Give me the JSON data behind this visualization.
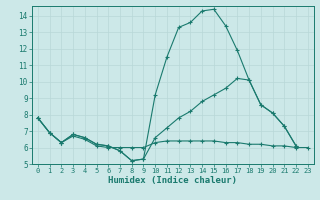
{
  "xlabel": "Humidex (Indice chaleur)",
  "bg_color": "#cce8e8",
  "grid_color": "#b8d8d8",
  "line_color": "#1a7a6e",
  "xlim": [
    -0.5,
    23.5
  ],
  "ylim": [
    5,
    14.6
  ],
  "yticks": [
    5,
    6,
    7,
    8,
    9,
    10,
    11,
    12,
    13,
    14
  ],
  "xticks": [
    0,
    1,
    2,
    3,
    4,
    5,
    6,
    7,
    8,
    9,
    10,
    11,
    12,
    13,
    14,
    15,
    16,
    17,
    18,
    19,
    20,
    21,
    22,
    23
  ],
  "line1_x": [
    0,
    1,
    2,
    3,
    4,
    5,
    6,
    7,
    8,
    9,
    10,
    11,
    12,
    13,
    14,
    15,
    16,
    17,
    18,
    19,
    20,
    21,
    22
  ],
  "line1_y": [
    7.8,
    6.9,
    6.3,
    6.8,
    6.6,
    6.2,
    6.1,
    5.8,
    5.2,
    5.3,
    9.2,
    11.5,
    13.3,
    13.6,
    14.3,
    14.4,
    13.4,
    11.9,
    10.1,
    8.6,
    8.1,
    7.3,
    6.1
  ],
  "line2_x": [
    0,
    1,
    2,
    3,
    4,
    5,
    6,
    7,
    8,
    9,
    10,
    11,
    12,
    13,
    14,
    15,
    16,
    17,
    18,
    19,
    20,
    21,
    22
  ],
  "line2_y": [
    7.8,
    6.9,
    6.3,
    6.8,
    6.6,
    6.2,
    6.1,
    5.8,
    5.2,
    5.3,
    6.6,
    7.2,
    7.8,
    8.2,
    8.8,
    9.2,
    9.6,
    10.2,
    10.1,
    8.6,
    8.1,
    7.3,
    6.1
  ],
  "line3_x": [
    0,
    1,
    2,
    3,
    4,
    5,
    6,
    7,
    8,
    9,
    10,
    11,
    12,
    13,
    14,
    15,
    16,
    17,
    18,
    19,
    20,
    21,
    22,
    23
  ],
  "line3_y": [
    7.8,
    6.9,
    6.3,
    6.7,
    6.5,
    6.1,
    6.0,
    6.0,
    6.0,
    6.0,
    6.3,
    6.4,
    6.4,
    6.4,
    6.4,
    6.4,
    6.3,
    6.3,
    6.2,
    6.2,
    6.1,
    6.1,
    6.0,
    6.0
  ]
}
